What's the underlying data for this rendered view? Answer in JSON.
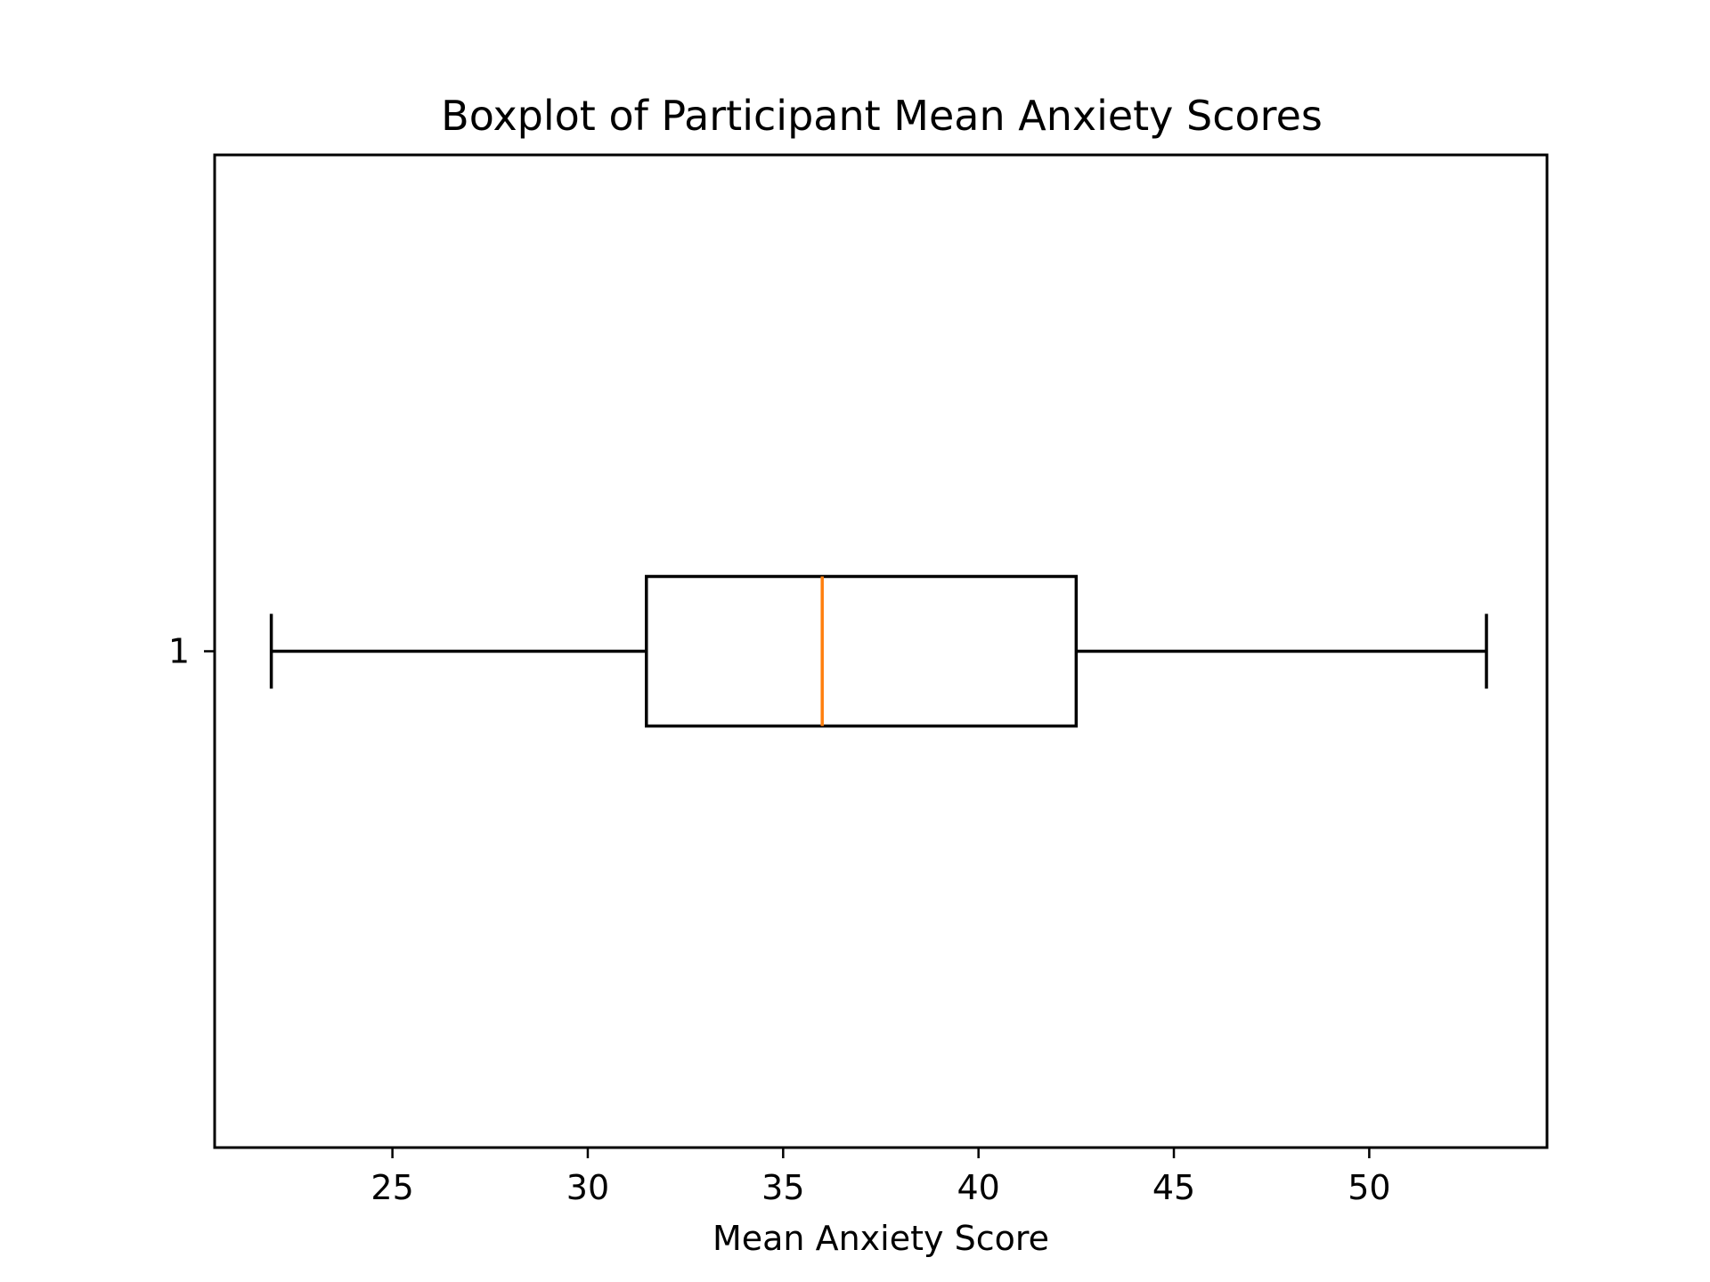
{
  "chart_data": {
    "type": "boxplot",
    "orientation": "horizontal",
    "title": "Boxplot of Participant Mean Anxiety Scores",
    "xlabel": "Mean Anxiety Score",
    "ylabel": "",
    "xlim": [
      20.45,
      54.55
    ],
    "xticks": [
      25,
      30,
      35,
      40,
      45,
      50
    ],
    "categories": [
      "1"
    ],
    "boxes": [
      {
        "label": "1",
        "whisker_low": 21.9,
        "q1": 31.5,
        "median": 36.0,
        "q3": 42.5,
        "whisker_high": 53.0
      }
    ],
    "colors": {
      "box": "#000000",
      "median": "#ff7f0e",
      "axes": "#000000"
    },
    "grid": false,
    "legend": "none"
  }
}
